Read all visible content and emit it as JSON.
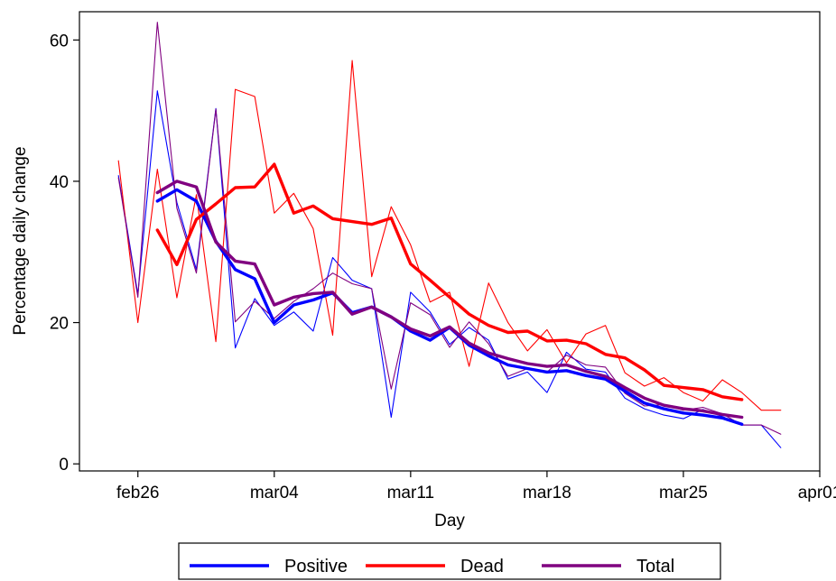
{
  "chart_data": {
    "type": "line",
    "xlabel": "Day",
    "ylabel": "Percentage daily change",
    "xlim": [
      "2020-02-23",
      "2020-04-01"
    ],
    "ylim": [
      -1,
      64
    ],
    "x_ticks": [
      {
        "date": "2020-02-26",
        "label": "feb26"
      },
      {
        "date": "2020-03-04",
        "label": "mar04"
      },
      {
        "date": "2020-03-11",
        "label": "mar11"
      },
      {
        "date": "2020-03-18",
        "label": "mar18"
      },
      {
        "date": "2020-03-25",
        "label": "mar25"
      },
      {
        "date": "2020-04-01",
        "label": "apr01"
      }
    ],
    "y_ticks": [
      0,
      20,
      40,
      60
    ],
    "legend": {
      "position": "bottom",
      "entries": [
        "Positive",
        "Dead",
        "Total"
      ]
    },
    "colors": {
      "Positive": "#0000ff",
      "Dead": "#ff0000",
      "Total": "#800080"
    },
    "series": [
      {
        "name": "Positive",
        "kind": "daily",
        "dates": [
          "2020-02-25",
          "2020-02-26",
          "2020-02-27",
          "2020-02-28",
          "2020-02-29",
          "2020-03-01",
          "2020-03-02",
          "2020-03-03",
          "2020-03-04",
          "2020-03-05",
          "2020-03-06",
          "2020-03-07",
          "2020-03-08",
          "2020-03-09",
          "2020-03-10",
          "2020-03-11",
          "2020-03-12",
          "2020-03-13",
          "2020-03-14",
          "2020-03-15",
          "2020-03-16",
          "2020-03-17",
          "2020-03-18",
          "2020-03-19",
          "2020-03-20",
          "2020-03-21",
          "2020-03-22",
          "2020-03-23",
          "2020-03-24",
          "2020-03-25",
          "2020-03-26",
          "2020-03-27",
          "2020-03-28",
          "2020-03-29",
          "2020-03-30"
        ],
        "values": [
          40.8,
          24.0,
          52.8,
          37.0,
          27.5,
          50.3,
          16.4,
          23.4,
          19.6,
          21.5,
          18.8,
          29.2,
          26.0,
          24.8,
          6.6,
          24.3,
          21.5,
          16.9,
          19.3,
          17.5,
          12.0,
          13.0,
          10.1,
          15.8,
          13.4,
          13.0,
          9.3,
          7.8,
          6.9,
          6.4,
          7.7,
          6.7,
          5.5,
          5.5,
          2.3
        ]
      },
      {
        "name": "Dead",
        "kind": "daily",
        "dates": [
          "2020-02-25",
          "2020-02-26",
          "2020-02-27",
          "2020-02-28",
          "2020-02-29",
          "2020-03-01",
          "2020-03-02",
          "2020-03-03",
          "2020-03-04",
          "2020-03-05",
          "2020-03-06",
          "2020-03-07",
          "2020-03-08",
          "2020-03-09",
          "2020-03-10",
          "2020-03-11",
          "2020-03-12",
          "2020-03-13",
          "2020-03-14",
          "2020-03-15",
          "2020-03-16",
          "2020-03-17",
          "2020-03-18",
          "2020-03-19",
          "2020-03-20",
          "2020-03-21",
          "2020-03-22",
          "2020-03-23",
          "2020-03-24",
          "2020-03-25",
          "2020-03-26",
          "2020-03-27",
          "2020-03-28",
          "2020-03-29",
          "2020-03-30"
        ],
        "values": [
          42.9,
          20.0,
          41.7,
          23.5,
          38.1,
          17.3,
          53.0,
          52.0,
          35.5,
          38.3,
          33.3,
          18.2,
          57.1,
          26.5,
          36.4,
          31.0,
          22.9,
          24.3,
          13.8,
          25.6,
          20.0,
          16.0,
          19.0,
          14.3,
          18.4,
          19.6,
          12.9,
          11.0,
          12.2,
          10.1,
          8.9,
          11.9,
          10.1,
          7.6,
          7.6
        ]
      },
      {
        "name": "Total",
        "kind": "daily",
        "dates": [
          "2020-02-25",
          "2020-02-26",
          "2020-02-27",
          "2020-02-28",
          "2020-02-29",
          "2020-03-01",
          "2020-03-02",
          "2020-03-03",
          "2020-03-04",
          "2020-03-05",
          "2020-03-06",
          "2020-03-07",
          "2020-03-08",
          "2020-03-09",
          "2020-03-10",
          "2020-03-11",
          "2020-03-12",
          "2020-03-13",
          "2020-03-14",
          "2020-03-15",
          "2020-03-16",
          "2020-03-17",
          "2020-03-18",
          "2020-03-19",
          "2020-03-20",
          "2020-03-21",
          "2020-03-22",
          "2020-03-23",
          "2020-03-24",
          "2020-03-25",
          "2020-03-26",
          "2020-03-27",
          "2020-03-28",
          "2020-03-29",
          "2020-03-30"
        ],
        "values": [
          40.5,
          23.6,
          62.5,
          36.2,
          27.0,
          50.2,
          20.1,
          23.0,
          20.6,
          23.0,
          24.8,
          27.0,
          25.5,
          24.8,
          10.6,
          22.8,
          21.1,
          16.5,
          20.1,
          17.0,
          12.4,
          13.5,
          13.0,
          15.4,
          14.0,
          13.7,
          10.0,
          8.2,
          8.4,
          7.6,
          8.0,
          7.1,
          5.5,
          5.5,
          4.2
        ]
      },
      {
        "name": "Positive",
        "kind": "smoothed",
        "dates": [
          "2020-02-27",
          "2020-02-28",
          "2020-02-29",
          "2020-03-01",
          "2020-03-02",
          "2020-03-03",
          "2020-03-04",
          "2020-03-05",
          "2020-03-06",
          "2020-03-07",
          "2020-03-08",
          "2020-03-09",
          "2020-03-10",
          "2020-03-11",
          "2020-03-12",
          "2020-03-13",
          "2020-03-14",
          "2020-03-15",
          "2020-03-16",
          "2020-03-17",
          "2020-03-18",
          "2020-03-19",
          "2020-03-20",
          "2020-03-21",
          "2020-03-22",
          "2020-03-23",
          "2020-03-24",
          "2020-03-25",
          "2020-03-26",
          "2020-03-27",
          "2020-03-28"
        ],
        "values": [
          37.2,
          38.8,
          37.2,
          31.5,
          27.5,
          26.2,
          20.0,
          22.5,
          23.2,
          24.2,
          21.4,
          22.2,
          20.8,
          18.8,
          17.5,
          19.3,
          16.8,
          15.3,
          14.0,
          13.5,
          13.0,
          13.2,
          12.5,
          12.0,
          10.3,
          8.6,
          7.8,
          7.2,
          6.9,
          6.5,
          5.6
        ]
      },
      {
        "name": "Dead",
        "kind": "smoothed",
        "dates": [
          "2020-02-27",
          "2020-02-28",
          "2020-02-29",
          "2020-03-01",
          "2020-03-02",
          "2020-03-03",
          "2020-03-04",
          "2020-03-05",
          "2020-03-06",
          "2020-03-07",
          "2020-03-08",
          "2020-03-09",
          "2020-03-10",
          "2020-03-11",
          "2020-03-12",
          "2020-03-13",
          "2020-03-14",
          "2020-03-15",
          "2020-03-16",
          "2020-03-17",
          "2020-03-18",
          "2020-03-19",
          "2020-03-20",
          "2020-03-21",
          "2020-03-22",
          "2020-03-23",
          "2020-03-24",
          "2020-03-25",
          "2020-03-26",
          "2020-03-27",
          "2020-03-28"
        ],
        "values": [
          33.1,
          28.2,
          34.6,
          36.8,
          39.1,
          39.2,
          42.4,
          35.5,
          36.5,
          34.7,
          34.3,
          33.9,
          34.8,
          28.3,
          26.0,
          23.6,
          21.2,
          19.6,
          18.6,
          18.8,
          17.4,
          17.5,
          17.0,
          15.5,
          15.0,
          13.3,
          11.1,
          10.8,
          10.5,
          9.5,
          9.1
        ]
      },
      {
        "name": "Total",
        "kind": "smoothed",
        "dates": [
          "2020-02-27",
          "2020-02-28",
          "2020-02-29",
          "2020-03-01",
          "2020-03-02",
          "2020-03-03",
          "2020-03-04",
          "2020-03-05",
          "2020-03-06",
          "2020-03-07",
          "2020-03-08",
          "2020-03-09",
          "2020-03-10",
          "2020-03-11",
          "2020-03-12",
          "2020-03-13",
          "2020-03-14",
          "2020-03-15",
          "2020-03-16",
          "2020-03-17",
          "2020-03-18",
          "2020-03-19",
          "2020-03-20",
          "2020-03-21",
          "2020-03-22",
          "2020-03-23",
          "2020-03-24",
          "2020-03-25",
          "2020-03-26",
          "2020-03-27",
          "2020-03-28"
        ],
        "values": [
          38.4,
          40.0,
          39.2,
          31.4,
          28.7,
          28.3,
          22.5,
          23.6,
          24.1,
          24.3,
          21.2,
          22.2,
          20.8,
          19.1,
          18.1,
          19.4,
          17.1,
          15.7,
          14.9,
          14.2,
          13.8,
          14.0,
          13.1,
          12.4,
          10.8,
          9.3,
          8.3,
          7.8,
          7.5,
          7.0,
          6.6
        ]
      }
    ]
  }
}
